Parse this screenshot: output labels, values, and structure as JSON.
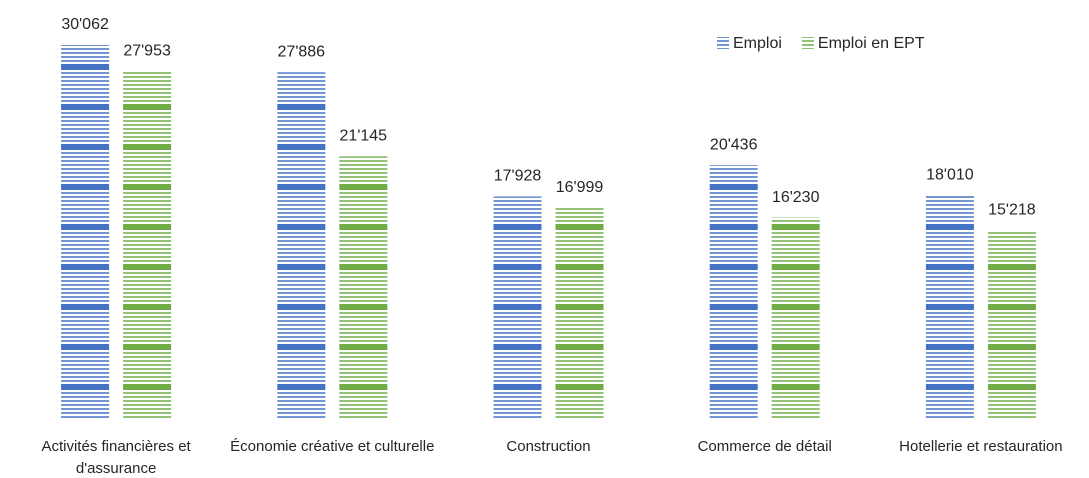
{
  "chart_data": {
    "type": "bar",
    "categories": [
      "Activités financières et d'assurance",
      "Économie créative et culturelle",
      "Construction",
      "Commerce de détail",
      "Hotellerie et restauration"
    ],
    "series": [
      {
        "name": "Emploi",
        "color": "#4472c4",
        "values": [
          30062,
          27886,
          17928,
          20436,
          18010
        ],
        "value_labels": [
          "30'062",
          "27'886",
          "17'928",
          "20'436",
          "18'010"
        ]
      },
      {
        "name": "Emploi en EPT",
        "color": "#70ad47",
        "values": [
          27953,
          21145,
          16999,
          16230,
          15218
        ],
        "value_labels": [
          "27'953",
          "21'145",
          "16'999",
          "16'230",
          "15'218"
        ]
      }
    ],
    "legend": "top-right"
  }
}
